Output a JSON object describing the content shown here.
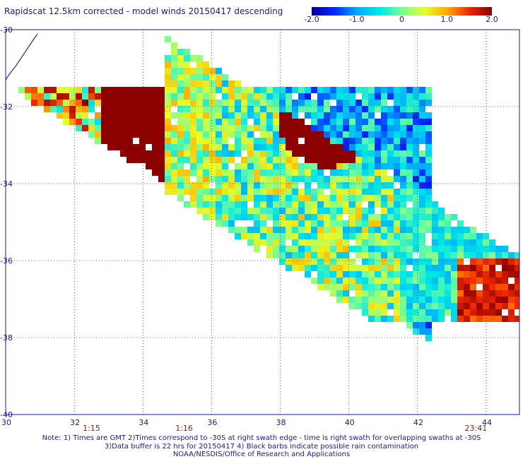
{
  "title": "Rapidscat 12.5km corrected - model winds 20150417 descending",
  "colorbar": {
    "min": -2.0,
    "max": 2.0,
    "ticks": [
      "-2.0",
      "-1.0",
      "0",
      "1.0",
      "2.0"
    ],
    "tick_values": [
      -2.0,
      -1.0,
      0,
      1.0,
      2.0
    ]
  },
  "map": {
    "lon_range": [
      30,
      45
    ],
    "lat_range": [
      -40,
      -30
    ],
    "lon_ticks": [
      {
        "value": 30,
        "label": "30"
      },
      {
        "value": 32,
        "label": "32"
      },
      {
        "value": 34,
        "label": "34"
      },
      {
        "value": 36,
        "label": "36"
      },
      {
        "value": 38,
        "label": "38"
      },
      {
        "value": 40,
        "label": "40"
      },
      {
        "value": 42,
        "label": "42"
      },
      {
        "value": 44,
        "label": "44"
      }
    ],
    "lat_ticks": [
      {
        "value": -30,
        "label": "-30"
      },
      {
        "value": -32,
        "label": "-32"
      },
      {
        "value": -34,
        "label": "-34"
      },
      {
        "value": -36,
        "label": "-36"
      },
      {
        "value": -38,
        "label": "-38"
      },
      {
        "value": -40,
        "label": "-40"
      }
    ],
    "times": [
      {
        "lon": 32.5,
        "label": "1:15"
      },
      {
        "lon": 35.2,
        "label": "1:16"
      },
      {
        "lon": 43.7,
        "label": "23:41"
      }
    ],
    "grid": "dotted"
  },
  "notes": [
    "Note: 1) Times are GMT 2)Times correspond to -30S at right swath edge - time is right swath for overlapping swaths at -30S",
    "3)Data buffer is 22 hrs for 20150417 4) Black barbs indicate possible rain contamination",
    "NOAA/NESDIS/Office of Research and Applications"
  ]
}
